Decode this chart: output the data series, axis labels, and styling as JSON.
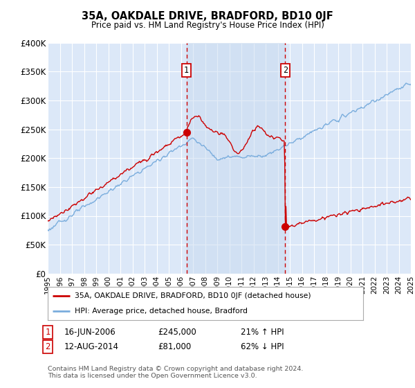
{
  "title": "35A, OAKDALE DRIVE, BRADFORD, BD10 0JF",
  "subtitle": "Price paid vs. HM Land Registry's House Price Index (HPI)",
  "ylim": [
    0,
    400000
  ],
  "yticks": [
    0,
    50000,
    100000,
    150000,
    200000,
    250000,
    300000,
    350000,
    400000
  ],
  "ytick_labels": [
    "£0",
    "£50K",
    "£100K",
    "£150K",
    "£200K",
    "£250K",
    "£300K",
    "£350K",
    "£400K"
  ],
  "plot_bg_color": "#dce8f8",
  "grid_color": "#ffffff",
  "sale1_date": 2006.46,
  "sale1_price": 245000,
  "sale2_date": 2014.62,
  "sale2_price": 81000,
  "line_color_red": "#cc0000",
  "line_color_blue": "#7aaddd",
  "shade_color": "#c8daf0",
  "annotation_box_color": "#cc0000",
  "footer_text": "Contains HM Land Registry data © Crown copyright and database right 2024.\nThis data is licensed under the Open Government Licence v3.0.",
  "legend_entry1": "35A, OAKDALE DRIVE, BRADFORD, BD10 0JF (detached house)",
  "legend_entry2": "HPI: Average price, detached house, Bradford"
}
